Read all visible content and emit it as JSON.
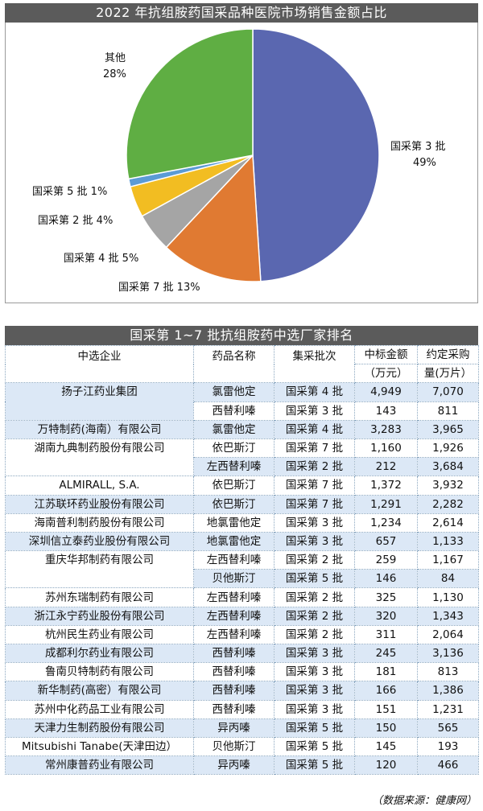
{
  "chart_data": {
    "type": "pie",
    "title": "2022 年抗组胺药国采品种医院市场销售金额占比",
    "slices": [
      {
        "label": "国采第 3 批",
        "pct_text": "49%",
        "value": 49,
        "color": "#5a67b0"
      },
      {
        "label": "国采第 7 批",
        "pct_text": "13%",
        "value": 13,
        "color": "#e07a32"
      },
      {
        "label": "国采第 4 批",
        "pct_text": "5%",
        "value": 5,
        "color": "#a5a5a5"
      },
      {
        "label": "国采第 2 批",
        "pct_text": "4%",
        "value": 4,
        "color": "#f2bd22"
      },
      {
        "label": "国采第 5 批",
        "pct_text": "1%",
        "value": 1,
        "color": "#5b9bd5"
      },
      {
        "label": "其他",
        "pct_text": "28%",
        "value": 28,
        "color": "#5fae43"
      }
    ]
  },
  "table": {
    "title": "国采第 1~7 批抗组胺药中选厂家排名",
    "headers": {
      "company": "中选企业",
      "drug": "药品名称",
      "batch": "集采批次",
      "amount_l1": "中标金额",
      "amount_l2": "（万元）",
      "volume_l1": "约定采购",
      "volume_l2": "量(万片）"
    },
    "rows": [
      {
        "company": "扬子江药业集团",
        "span": 2,
        "drugs": [
          {
            "drug": "氯雷他定",
            "batch": "国采第 4 批",
            "amount": "4,949",
            "volume": "7,070"
          },
          {
            "drug": "西替利嗪",
            "batch": "国采第 3 批",
            "amount": "143",
            "volume": "811"
          }
        ]
      },
      {
        "company": "万特制药(海南）有限公司",
        "span": 1,
        "drugs": [
          {
            "drug": "氯雷他定",
            "batch": "国采第 4 批",
            "amount": "3,283",
            "volume": "3,965"
          }
        ]
      },
      {
        "company": "湖南九典制药股份有限公司",
        "span": 2,
        "drugs": [
          {
            "drug": "依巴斯汀",
            "batch": "国采第 7 批",
            "amount": "1,160",
            "volume": "1,926"
          },
          {
            "drug": "左西替利嗪",
            "batch": "国采第 2 批",
            "amount": "212",
            "volume": "3,684"
          }
        ]
      },
      {
        "company": "ALMIRALL, S.A.",
        "span": 1,
        "drugs": [
          {
            "drug": "依巴斯汀",
            "batch": "国采第 7 批",
            "amount": "1,372",
            "volume": "3,932"
          }
        ]
      },
      {
        "company": "江苏联环药业股份有限公司",
        "span": 1,
        "drugs": [
          {
            "drug": "依巴斯汀",
            "batch": "国采第 7 批",
            "amount": "1,291",
            "volume": "2,282"
          }
        ]
      },
      {
        "company": "海南普利制药股份有限公司",
        "span": 1,
        "drugs": [
          {
            "drug": "地氯雷他定",
            "batch": "国采第 3 批",
            "amount": "1,234",
            "volume": "2,614"
          }
        ]
      },
      {
        "company": "深圳信立泰药业股份有限公司",
        "span": 1,
        "drugs": [
          {
            "drug": "地氯雷他定",
            "batch": "国采第 3 批",
            "amount": "657",
            "volume": "1,133"
          }
        ]
      },
      {
        "company": "重庆华邦制药有限公司",
        "span": 2,
        "drugs": [
          {
            "drug": "左西替利嗪",
            "batch": "国采第 2 批",
            "amount": "259",
            "volume": "1,167"
          },
          {
            "drug": "贝他斯汀",
            "batch": "国采第 5 批",
            "amount": "146",
            "volume": "84"
          }
        ]
      },
      {
        "company": "苏州东瑞制药有限公司",
        "span": 1,
        "drugs": [
          {
            "drug": "左西替利嗪",
            "batch": "国采第 2 批",
            "amount": "325",
            "volume": "1,130"
          }
        ]
      },
      {
        "company": "浙江永宁药业股份有限公司",
        "span": 1,
        "drugs": [
          {
            "drug": "左西替利嗪",
            "batch": "国采第 2 批",
            "amount": "320",
            "volume": "1,343"
          }
        ]
      },
      {
        "company": "杭州民生药业有限公司",
        "span": 1,
        "drugs": [
          {
            "drug": "左西替利嗪",
            "batch": "国采第 2 批",
            "amount": "311",
            "volume": "2,064"
          }
        ]
      },
      {
        "company": "成都利尔药业有限公司",
        "span": 1,
        "drugs": [
          {
            "drug": "西替利嗪",
            "batch": "国采第 3 批",
            "amount": "245",
            "volume": "3,136"
          }
        ]
      },
      {
        "company": "鲁南贝特制药有限公司",
        "span": 1,
        "drugs": [
          {
            "drug": "西替利嗪",
            "batch": "国采第 3 批",
            "amount": "181",
            "volume": "813"
          }
        ]
      },
      {
        "company": "新华制药(高密）有限公司",
        "span": 1,
        "drugs": [
          {
            "drug": "西替利嗪",
            "batch": "国采第 3 批",
            "amount": "166",
            "volume": "1,386"
          }
        ]
      },
      {
        "company": "苏州中化药品工业有限公司",
        "span": 1,
        "drugs": [
          {
            "drug": "西替利嗪",
            "batch": "国采第 3 批",
            "amount": "151",
            "volume": "1,231"
          }
        ]
      },
      {
        "company": "天津力生制药股份有限公司",
        "span": 1,
        "drugs": [
          {
            "drug": "异丙嗪",
            "batch": "国采第 5 批",
            "amount": "150",
            "volume": "565"
          }
        ]
      },
      {
        "company": "Mitsubishi Tanabe(天津田边）",
        "span": 1,
        "drugs": [
          {
            "drug": "贝他斯汀",
            "batch": "国采第 5 批",
            "amount": "145",
            "volume": "193"
          }
        ]
      },
      {
        "company": "常州康普药业有限公司",
        "span": 1,
        "drugs": [
          {
            "drug": "异丙嗪",
            "batch": "国采第 5 批",
            "amount": "120",
            "volume": "466"
          }
        ]
      }
    ]
  },
  "source": "（数据来源：健康网）"
}
